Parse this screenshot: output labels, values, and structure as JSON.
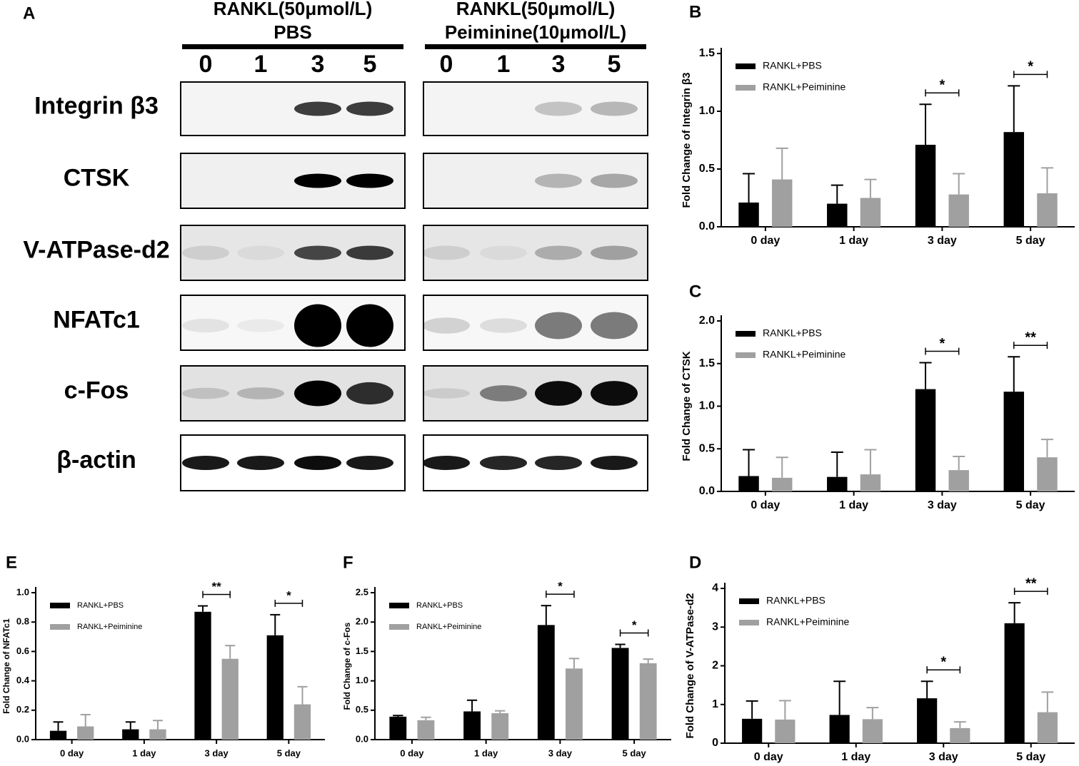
{
  "blot": {
    "label": "A",
    "groups": [
      {
        "title_lines": [
          "RANKL(50μmol/L)",
          "PBS"
        ],
        "lanes": [
          "0",
          "1",
          "3",
          "5"
        ]
      },
      {
        "title_lines": [
          "RANKL(50μmol/L)",
          "Peiminine(10μmol/L)"
        ],
        "lanes": [
          "0",
          "1",
          "3",
          "5"
        ]
      }
    ],
    "rows": [
      "Integrin β3",
      "CTSK",
      "V-ATPase-d2",
      "NFATc1",
      "c-Fos",
      "β-actin"
    ]
  },
  "chart_data": [
    {
      "type": "bar",
      "label": "B",
      "y_label": "Fold Change of Integrin β3",
      "categories": [
        "0 day",
        "1 day",
        "3 day",
        "5 day"
      ],
      "series": [
        {
          "name": "RANKL+PBS",
          "color": "#000000",
          "values": [
            0.21,
            0.2,
            0.71,
            0.82
          ],
          "errors": [
            0.25,
            0.16,
            0.35,
            0.4
          ]
        },
        {
          "name": "RANKL+Peiminine",
          "color": "#a0a0a0",
          "values": [
            0.41,
            0.25,
            0.28,
            0.29
          ],
          "errors": [
            0.27,
            0.16,
            0.18,
            0.22
          ]
        }
      ],
      "ylim": [
        0,
        1.5
      ],
      "yticks": [
        {
          "value": 0,
          "label": "0.0"
        },
        0.5,
        {
          "value": 1,
          "label": "1.0"
        },
        1.5
      ],
      "significance": [
        {
          "category": "3 day",
          "text": "*"
        },
        {
          "category": "5 day",
          "text": "*"
        }
      ]
    },
    {
      "type": "bar",
      "label": "C",
      "y_label": "Fold Change of CTSK",
      "categories": [
        "0 day",
        "1 day",
        "3 day",
        "5 day"
      ],
      "series": [
        {
          "name": "RANKL+PBS",
          "color": "#000000",
          "values": [
            0.18,
            0.17,
            1.2,
            1.17
          ],
          "errors": [
            0.31,
            0.29,
            0.31,
            0.41
          ]
        },
        {
          "name": "RANKL+Peiminine",
          "color": "#a0a0a0",
          "values": [
            0.16,
            0.2,
            0.25,
            0.4
          ],
          "errors": [
            0.24,
            0.29,
            0.16,
            0.21
          ]
        }
      ],
      "ylim": [
        0,
        2
      ],
      "yticks": [
        {
          "value": 0,
          "label": "0.0"
        },
        0.5,
        {
          "value": 1,
          "label": "1.0"
        },
        1.5,
        {
          "value": 2,
          "label": "2.0"
        }
      ],
      "significance": [
        {
          "category": "3 day",
          "text": "*"
        },
        {
          "category": "5 day",
          "text": "**"
        }
      ]
    },
    {
      "type": "bar",
      "label": "D",
      "y_label": "Fold Change of V-ATPase-d2",
      "categories": [
        "0 day",
        "1 day",
        "3 day",
        "5 day"
      ],
      "series": [
        {
          "name": "RANKL+PBS",
          "color": "#000000",
          "values": [
            0.63,
            0.73,
            1.16,
            3.1
          ],
          "errors": [
            0.46,
            0.87,
            0.44,
            0.53
          ]
        },
        {
          "name": "RANKL+Peiminine",
          "color": "#a0a0a0",
          "values": [
            0.61,
            0.62,
            0.39,
            0.8
          ],
          "errors": [
            0.49,
            0.3,
            0.16,
            0.52
          ]
        }
      ],
      "ylim": [
        0,
        4
      ],
      "yticks": [
        0,
        1,
        2,
        3,
        4
      ],
      "significance": [
        {
          "category": "3 day",
          "text": "*"
        },
        {
          "category": "5 day",
          "text": "**"
        }
      ]
    },
    {
      "type": "bar",
      "label": "E",
      "y_label": "Fold Change of NFATc1",
      "categories": [
        "0 day",
        "1 day",
        "3 day",
        "5 day"
      ],
      "series": [
        {
          "name": "RANKL+PBS",
          "color": "#000000",
          "values": [
            0.06,
            0.07,
            0.87,
            0.71
          ],
          "errors": [
            0.06,
            0.05,
            0.04,
            0.14
          ]
        },
        {
          "name": "RANKL+Peiminine",
          "color": "#a0a0a0",
          "values": [
            0.09,
            0.07,
            0.55,
            0.24
          ],
          "errors": [
            0.08,
            0.06,
            0.09,
            0.12
          ]
        }
      ],
      "ylim": [
        0,
        1
      ],
      "yticks": [
        {
          "value": 0,
          "label": "0.0"
        },
        0.2,
        0.4,
        0.6,
        0.8,
        {
          "value": 1,
          "label": "1.0"
        }
      ],
      "significance": [
        {
          "category": "3 day",
          "text": "**"
        },
        {
          "category": "5 day",
          "text": "*"
        }
      ]
    },
    {
      "type": "bar",
      "label": "F",
      "y_label": "Fold Change of c-Fos",
      "categories": [
        "0 day",
        "1 day",
        "3 day",
        "5 day"
      ],
      "series": [
        {
          "name": "RANKL+PBS",
          "color": "#000000",
          "values": [
            0.39,
            0.48,
            1.95,
            1.56
          ],
          "errors": [
            0.02,
            0.19,
            0.33,
            0.06
          ]
        },
        {
          "name": "RANKL+Peiminine",
          "color": "#a0a0a0",
          "values": [
            0.33,
            0.45,
            1.21,
            1.3
          ],
          "errors": [
            0.05,
            0.04,
            0.17,
            0.07
          ]
        }
      ],
      "ylim": [
        0,
        2.5
      ],
      "yticks": [
        {
          "value": 0,
          "label": "0.0"
        },
        0.5,
        {
          "value": 1,
          "label": "1.0"
        },
        1.5,
        {
          "value": 2,
          "label": "2.0"
        },
        2.5
      ],
      "significance": [
        {
          "category": "3 day",
          "text": "*"
        },
        {
          "category": "5 day",
          "text": "*"
        }
      ]
    }
  ]
}
